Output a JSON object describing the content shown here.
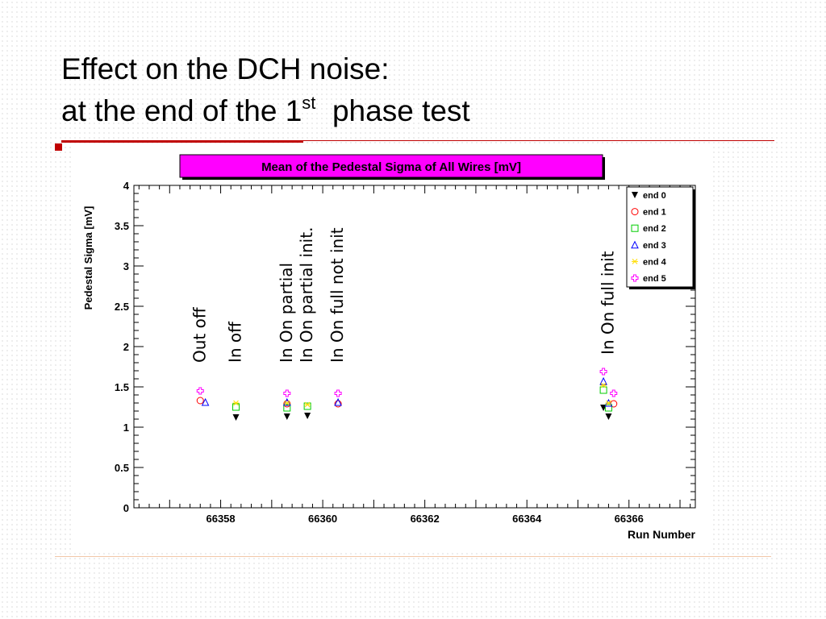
{
  "slide": {
    "title_line1": "Effect on the DCH noise:",
    "title_line2_pre": "at the end of the 1",
    "title_line2_sup": "st",
    "title_line2_post": "  phase test"
  },
  "colors": {
    "accent_red": "#c00000",
    "chart_title_bg": "#ff00ff"
  },
  "chart_data": {
    "type": "scatter",
    "title": "Mean of the Pedestal Sigma of All Wires [mV]",
    "xlabel": "Run Number",
    "ylabel": "Pedestal Sigma [mV]",
    "xlim": [
      66356.3,
      66367.3
    ],
    "ylim": [
      0,
      4
    ],
    "x_ticks": [
      66358,
      66360,
      66362,
      66364,
      66366
    ],
    "y_ticks": [
      0,
      0.5,
      1,
      1.5,
      2,
      2.5,
      3,
      3.5,
      4
    ],
    "y_tick_labels": [
      "0",
      "0.5",
      "1",
      "1.5",
      "2",
      "2.5",
      "3",
      "3.5",
      "4"
    ],
    "legend_position": "top-right",
    "series": [
      {
        "name": "end 0",
        "marker": "triangle-down-filled",
        "color": "#000000",
        "points": [
          [
            66358.3,
            1.12
          ],
          [
            66359.3,
            1.13
          ],
          [
            66359.7,
            1.14
          ],
          [
            66365.5,
            1.24
          ],
          [
            66365.6,
            1.13
          ]
        ]
      },
      {
        "name": "end 1",
        "marker": "circle",
        "color": "#ff0000",
        "points": [
          [
            66357.6,
            1.33
          ],
          [
            66359.3,
            1.29
          ],
          [
            66360.3,
            1.29
          ],
          [
            66365.7,
            1.29
          ]
        ]
      },
      {
        "name": "end 2",
        "marker": "square",
        "color": "#00cc00",
        "points": [
          [
            66358.3,
            1.25
          ],
          [
            66359.3,
            1.24
          ],
          [
            66359.7,
            1.26
          ],
          [
            66365.5,
            1.46
          ],
          [
            66365.6,
            1.24
          ]
        ]
      },
      {
        "name": "end 3",
        "marker": "triangle-up",
        "color": "#0000ff",
        "points": [
          [
            66357.7,
            1.31
          ],
          [
            66359.3,
            1.31
          ],
          [
            66360.3,
            1.31
          ],
          [
            66365.5,
            1.57
          ],
          [
            66365.6,
            1.3
          ]
        ]
      },
      {
        "name": "end 4",
        "marker": "star",
        "color": "#ffdd00",
        "points": [
          [
            66358.3,
            1.3
          ],
          [
            66359.3,
            1.3
          ],
          [
            66359.7,
            1.28
          ],
          [
            66365.5,
            1.52
          ],
          [
            66365.6,
            1.3
          ]
        ]
      },
      {
        "name": "end 5",
        "marker": "plus",
        "color": "#ff00ff",
        "points": [
          [
            66357.6,
            1.45
          ],
          [
            66359.3,
            1.42
          ],
          [
            66360.3,
            1.42
          ],
          [
            66365.5,
            1.69
          ],
          [
            66365.7,
            1.42
          ]
        ]
      }
    ],
    "annotations": [
      {
        "text": "Out off",
        "x": 66357.6,
        "y": 1.8
      },
      {
        "text": "In off",
        "x": 66358.3,
        "y": 1.8
      },
      {
        "text": "In On partial",
        "x": 66359.3,
        "y": 1.8
      },
      {
        "text": "In On partial init.",
        "x": 66359.7,
        "y": 1.8
      },
      {
        "text": "In On full not init",
        "x": 66360.3,
        "y": 1.8
      },
      {
        "text": "In On full init",
        "x": 66365.6,
        "y": 1.9
      }
    ]
  }
}
